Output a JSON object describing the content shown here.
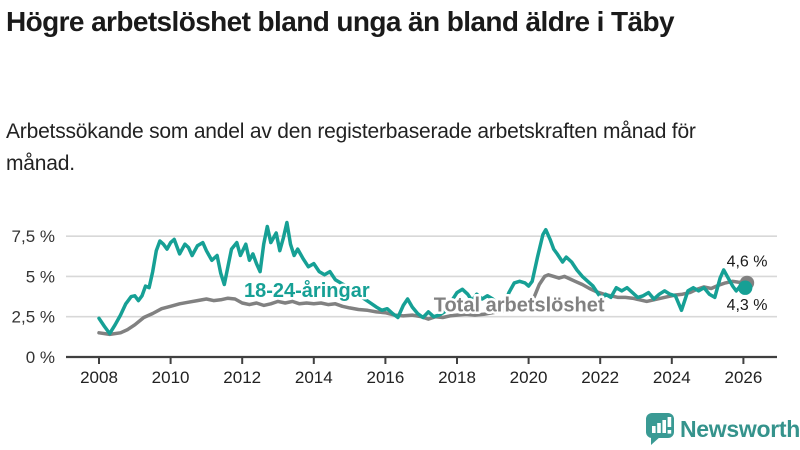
{
  "header": {
    "title": "Högre arbetslöshet bland unga än bland äldre i Täby",
    "subtitle": "Arbetssökande som andel av den registerbaserade arbetskraften månad för månad."
  },
  "footer": {
    "brand": "Newsworthy",
    "brand_color": "#35938c",
    "icon": "newsworthy-speech-bubble-chart-icon",
    "icon_color": "#3a9a94"
  },
  "chart_data": {
    "type": "line",
    "title": "Högre arbetslöshet bland unga än bland äldre i Täby",
    "xlabel": "",
    "ylabel": "",
    "xlim": [
      2007.6,
      2026.6
    ],
    "ylim": [
      0,
      8.7
    ],
    "grid": "horizontal",
    "x_ticks": [
      2008,
      2010,
      2012,
      2014,
      2016,
      2018,
      2020,
      2022,
      2024,
      2026
    ],
    "y_ticks": [
      {
        "value": 0,
        "label": "0 %"
      },
      {
        "value": 2.5,
        "label": "2,5 %"
      },
      {
        "value": 5,
        "label": "5 %"
      },
      {
        "value": 7.5,
        "label": "7,5 %"
      }
    ],
    "colors": {
      "youth": "#16a095",
      "total": "#818181",
      "grid": "#d8d8d8",
      "axis": "#404040",
      "text": "#333333"
    },
    "series": [
      {
        "name": "Total arbetslöshet",
        "key": "total",
        "color": "#818181",
        "end_value_label": "4,6 %",
        "end_dot": true,
        "points": [
          [
            2008.0,
            1.5
          ],
          [
            2008.3,
            1.4
          ],
          [
            2008.6,
            1.5
          ],
          [
            2008.8,
            1.7
          ],
          [
            2009.0,
            2.0
          ],
          [
            2009.25,
            2.45
          ],
          [
            2009.5,
            2.7
          ],
          [
            2009.75,
            3.0
          ],
          [
            2010.0,
            3.15
          ],
          [
            2010.25,
            3.3
          ],
          [
            2010.5,
            3.4
          ],
          [
            2010.75,
            3.5
          ],
          [
            2011.0,
            3.6
          ],
          [
            2011.2,
            3.5
          ],
          [
            2011.4,
            3.55
          ],
          [
            2011.6,
            3.65
          ],
          [
            2011.8,
            3.6
          ],
          [
            2012.0,
            3.35
          ],
          [
            2012.2,
            3.25
          ],
          [
            2012.4,
            3.35
          ],
          [
            2012.6,
            3.2
          ],
          [
            2012.8,
            3.3
          ],
          [
            2013.0,
            3.45
          ],
          [
            2013.2,
            3.35
          ],
          [
            2013.4,
            3.45
          ],
          [
            2013.6,
            3.3
          ],
          [
            2013.8,
            3.35
          ],
          [
            2014.0,
            3.3
          ],
          [
            2014.2,
            3.35
          ],
          [
            2014.4,
            3.25
          ],
          [
            2014.6,
            3.3
          ],
          [
            2014.8,
            3.15
          ],
          [
            2015.0,
            3.05
          ],
          [
            2015.25,
            2.95
          ],
          [
            2015.5,
            2.9
          ],
          [
            2015.75,
            2.8
          ],
          [
            2016.0,
            2.75
          ],
          [
            2016.25,
            2.6
          ],
          [
            2016.5,
            2.55
          ],
          [
            2016.75,
            2.6
          ],
          [
            2017.0,
            2.5
          ],
          [
            2017.2,
            2.35
          ],
          [
            2017.4,
            2.5
          ],
          [
            2017.6,
            2.45
          ],
          [
            2017.8,
            2.55
          ],
          [
            2018.0,
            2.6
          ],
          [
            2018.25,
            2.65
          ],
          [
            2018.5,
            2.6
          ],
          [
            2018.75,
            2.65
          ],
          [
            2019.0,
            2.75
          ],
          [
            2019.25,
            2.85
          ],
          [
            2019.5,
            3.0
          ],
          [
            2019.75,
            3.2
          ],
          [
            2020.0,
            3.35
          ],
          [
            2020.15,
            3.7
          ],
          [
            2020.3,
            4.5
          ],
          [
            2020.45,
            5.0
          ],
          [
            2020.55,
            5.1
          ],
          [
            2020.7,
            5.0
          ],
          [
            2020.85,
            4.9
          ],
          [
            2021.0,
            5.0
          ],
          [
            2021.15,
            4.85
          ],
          [
            2021.3,
            4.7
          ],
          [
            2021.5,
            4.5
          ],
          [
            2021.7,
            4.25
          ],
          [
            2021.9,
            4.05
          ],
          [
            2022.1,
            3.9
          ],
          [
            2022.3,
            3.8
          ],
          [
            2022.5,
            3.7
          ],
          [
            2022.7,
            3.7
          ],
          [
            2022.9,
            3.65
          ],
          [
            2023.1,
            3.55
          ],
          [
            2023.3,
            3.45
          ],
          [
            2023.5,
            3.55
          ],
          [
            2023.7,
            3.65
          ],
          [
            2023.9,
            3.75
          ],
          [
            2024.1,
            3.85
          ],
          [
            2024.3,
            3.9
          ],
          [
            2024.5,
            4.0
          ],
          [
            2024.7,
            4.2
          ],
          [
            2024.9,
            4.35
          ],
          [
            2025.1,
            4.25
          ],
          [
            2025.3,
            4.45
          ],
          [
            2025.5,
            4.6
          ],
          [
            2025.7,
            4.7
          ],
          [
            2025.85,
            4.65
          ],
          [
            2026.1,
            4.6
          ]
        ]
      },
      {
        "name": "18-24-åringar",
        "key": "youth",
        "color": "#16a095",
        "end_value_label": "4,3 %",
        "end_dot": true,
        "points": [
          [
            2008.0,
            2.4
          ],
          [
            2008.15,
            1.9
          ],
          [
            2008.3,
            1.45
          ],
          [
            2008.45,
            2.0
          ],
          [
            2008.6,
            2.6
          ],
          [
            2008.75,
            3.3
          ],
          [
            2008.9,
            3.75
          ],
          [
            2009.0,
            3.8
          ],
          [
            2009.1,
            3.5
          ],
          [
            2009.2,
            3.8
          ],
          [
            2009.3,
            4.4
          ],
          [
            2009.4,
            4.3
          ],
          [
            2009.5,
            5.3
          ],
          [
            2009.6,
            6.6
          ],
          [
            2009.7,
            7.2
          ],
          [
            2009.8,
            7.0
          ],
          [
            2009.9,
            6.7
          ],
          [
            2010.0,
            7.1
          ],
          [
            2010.1,
            7.3
          ],
          [
            2010.25,
            6.4
          ],
          [
            2010.4,
            7.0
          ],
          [
            2010.5,
            6.8
          ],
          [
            2010.6,
            6.3
          ],
          [
            2010.75,
            6.9
          ],
          [
            2010.9,
            7.1
          ],
          [
            2011.0,
            6.6
          ],
          [
            2011.15,
            6.0
          ],
          [
            2011.3,
            6.3
          ],
          [
            2011.4,
            5.2
          ],
          [
            2011.5,
            4.5
          ],
          [
            2011.6,
            5.6
          ],
          [
            2011.7,
            6.7
          ],
          [
            2011.85,
            7.1
          ],
          [
            2011.95,
            6.3
          ],
          [
            2012.1,
            7.0
          ],
          [
            2012.2,
            6.0
          ],
          [
            2012.3,
            6.4
          ],
          [
            2012.4,
            5.8
          ],
          [
            2012.5,
            5.3
          ],
          [
            2012.6,
            7.0
          ],
          [
            2012.7,
            8.1
          ],
          [
            2012.8,
            7.1
          ],
          [
            2012.95,
            7.7
          ],
          [
            2013.05,
            6.6
          ],
          [
            2013.15,
            7.4
          ],
          [
            2013.25,
            8.35
          ],
          [
            2013.35,
            7.0
          ],
          [
            2013.45,
            6.3
          ],
          [
            2013.55,
            6.7
          ],
          [
            2013.7,
            6.1
          ],
          [
            2013.85,
            5.6
          ],
          [
            2014.0,
            5.8
          ],
          [
            2014.15,
            5.3
          ],
          [
            2014.3,
            5.1
          ],
          [
            2014.45,
            5.3
          ],
          [
            2014.6,
            4.8
          ],
          [
            2014.75,
            4.6
          ],
          [
            2014.9,
            4.4
          ],
          [
            2015.05,
            4.1
          ],
          [
            2015.2,
            3.9
          ],
          [
            2015.35,
            3.7
          ],
          [
            2015.55,
            3.4
          ],
          [
            2015.75,
            3.1
          ],
          [
            2015.9,
            2.9
          ],
          [
            2016.05,
            3.0
          ],
          [
            2016.2,
            2.7
          ],
          [
            2016.35,
            2.45
          ],
          [
            2016.5,
            3.2
          ],
          [
            2016.62,
            3.6
          ],
          [
            2016.75,
            3.1
          ],
          [
            2016.9,
            2.7
          ],
          [
            2017.05,
            2.45
          ],
          [
            2017.2,
            2.8
          ],
          [
            2017.35,
            2.5
          ],
          [
            2017.5,
            2.6
          ],
          [
            2017.65,
            2.8
          ],
          [
            2017.8,
            3.3
          ],
          [
            2018.0,
            4.0
          ],
          [
            2018.15,
            4.2
          ],
          [
            2018.3,
            3.9
          ],
          [
            2018.42,
            3.5
          ],
          [
            2018.55,
            3.9
          ],
          [
            2018.7,
            3.6
          ],
          [
            2018.85,
            3.8
          ],
          [
            2019.0,
            3.6
          ],
          [
            2019.15,
            3.3
          ],
          [
            2019.3,
            3.1
          ],
          [
            2019.45,
            4.0
          ],
          [
            2019.6,
            4.6
          ],
          [
            2019.75,
            4.7
          ],
          [
            2019.9,
            4.6
          ],
          [
            2020.0,
            4.4
          ],
          [
            2020.1,
            4.7
          ],
          [
            2020.25,
            6.2
          ],
          [
            2020.4,
            7.6
          ],
          [
            2020.48,
            7.9
          ],
          [
            2020.6,
            7.3
          ],
          [
            2020.7,
            6.7
          ],
          [
            2020.8,
            6.4
          ],
          [
            2020.95,
            5.9
          ],
          [
            2021.05,
            6.2
          ],
          [
            2021.2,
            5.9
          ],
          [
            2021.35,
            5.4
          ],
          [
            2021.5,
            5.0
          ],
          [
            2021.65,
            4.7
          ],
          [
            2021.8,
            4.4
          ],
          [
            2021.95,
            3.9
          ],
          [
            2022.05,
            3.6
          ],
          [
            2022.15,
            3.9
          ],
          [
            2022.3,
            3.7
          ],
          [
            2022.45,
            4.3
          ],
          [
            2022.6,
            4.1
          ],
          [
            2022.75,
            4.3
          ],
          [
            2022.9,
            4.0
          ],
          [
            2023.05,
            3.7
          ],
          [
            2023.2,
            3.8
          ],
          [
            2023.35,
            4.0
          ],
          [
            2023.5,
            3.6
          ],
          [
            2023.65,
            3.9
          ],
          [
            2023.8,
            4.1
          ],
          [
            2023.95,
            3.9
          ],
          [
            2024.1,
            3.8
          ],
          [
            2024.27,
            2.9
          ],
          [
            2024.45,
            4.1
          ],
          [
            2024.6,
            4.3
          ],
          [
            2024.75,
            4.1
          ],
          [
            2024.9,
            4.3
          ],
          [
            2025.05,
            3.9
          ],
          [
            2025.2,
            3.7
          ],
          [
            2025.35,
            4.9
          ],
          [
            2025.45,
            5.4
          ],
          [
            2025.6,
            4.8
          ],
          [
            2025.7,
            4.4
          ],
          [
            2025.8,
            4.1
          ],
          [
            2025.95,
            4.5
          ],
          [
            2026.05,
            4.3
          ]
        ]
      }
    ],
    "annotations": [
      {
        "kind": "series-label",
        "text": "18-24-åringar",
        "x_year": 2012.05,
        "y_pct": 3.73,
        "color": "#16a095",
        "anchor": "start"
      },
      {
        "kind": "series-label",
        "text": "Total arbetslöshet",
        "x_year": 2017.35,
        "y_pct": 2.83,
        "color": "#818181",
        "anchor": "start"
      },
      {
        "kind": "value-label",
        "text": "4,6 %",
        "x_year": 2025.53,
        "y_pct": 5.62,
        "color": "#1a1a1a",
        "anchor": "start"
      },
      {
        "kind": "value-label",
        "text": "4,3 %",
        "x_year": 2025.53,
        "y_pct": 2.93,
        "color": "#1a1a1a",
        "anchor": "start"
      }
    ],
    "legend": "inline-labels"
  }
}
